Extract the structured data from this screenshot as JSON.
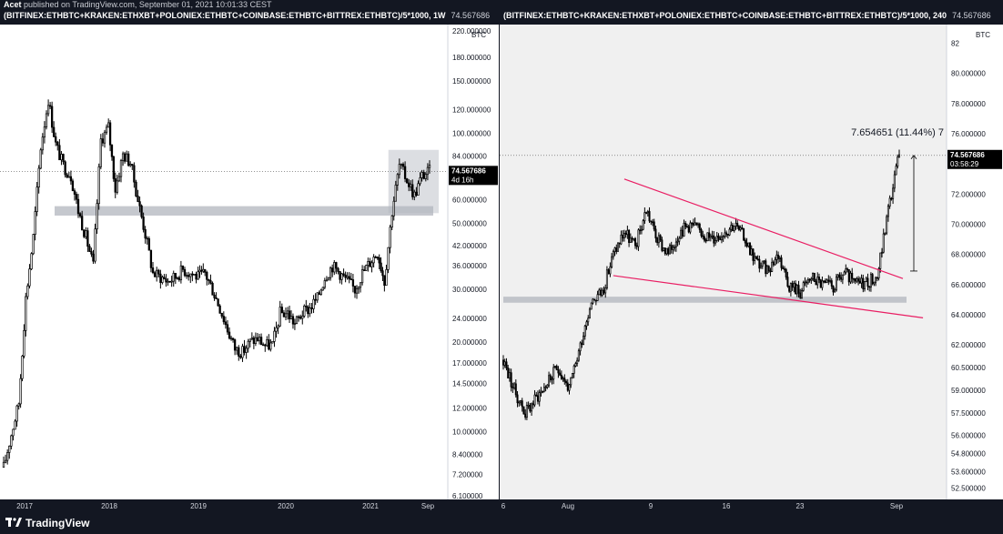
{
  "header": {
    "author": "Acet",
    "publish_text": " published on TradingView.com, September 01, 2021 10:01:33 CEST"
  },
  "footer": {
    "brand": "TradingView"
  },
  "colors": {
    "candle": "#000000",
    "wedge_line": "#e91e63",
    "zone_gray": "#b2b5be",
    "price_label_bg": "#000000",
    "header_bg": "#131722"
  },
  "chart_data": [
    {
      "type": "candlestick",
      "title": "(BITFINEX:ETHBTC+KRAKEN:ETHXBT+POLONIEX:ETHBTC+COINBASE:ETHBTC+BITTREX:ETHBTC)/5*1000, 1W",
      "last_value_header": "74.567686",
      "log_scale": true,
      "y_unit": "BTC",
      "y_ticks": [
        "220.000000",
        "180.000000",
        "150.000000",
        "120.000000",
        "100.000000",
        "84.000000",
        "60.000000",
        "50.000000",
        "42.000000",
        "36.000000",
        "30.000000",
        "24.000000",
        "20.000000",
        "17.000000",
        "14.500000",
        "12.000000",
        "10.000000",
        "8.400000",
        "7.200000",
        "6.100000"
      ],
      "x_ticks": [
        "2017",
        "2018",
        "2019",
        "2020",
        "2021",
        "Sep"
      ],
      "ylim": [
        6.1,
        225
      ],
      "last_price_label": "74.567686",
      "countdown_label": "4d 16h",
      "support_zone": [
        53,
        57
      ],
      "highlight_box": [
        54,
        88
      ],
      "series_points": [
        [
          "2016-12",
          7.6
        ],
        [
          "2017-01",
          9.8
        ],
        [
          "2017-02",
          12.5
        ],
        [
          "2017-03",
          28
        ],
        [
          "2017-04",
          45
        ],
        [
          "2017-05",
          90
        ],
        [
          "2017-06",
          130
        ],
        [
          "2017-07",
          92
        ],
        [
          "2017-08",
          78
        ],
        [
          "2017-09",
          72
        ],
        [
          "2017-10",
          55
        ],
        [
          "2017-11",
          45
        ],
        [
          "2017-12",
          36
        ],
        [
          "2018-01",
          95
        ],
        [
          "2018-02",
          105
        ],
        [
          "2018-03",
          65
        ],
        [
          "2018-04",
          85
        ],
        [
          "2018-05",
          80
        ],
        [
          "2018-06",
          60
        ],
        [
          "2018-07",
          46
        ],
        [
          "2018-08",
          34
        ],
        [
          "2018-09",
          33
        ],
        [
          "2018-10",
          32
        ],
        [
          "2018-11",
          33
        ],
        [
          "2018-12",
          35
        ],
        [
          "2019-01",
          34
        ],
        [
          "2019-02",
          33
        ],
        [
          "2019-03",
          34
        ],
        [
          "2019-04",
          30
        ],
        [
          "2019-05",
          26
        ],
        [
          "2019-06",
          22
        ],
        [
          "2019-07",
          19
        ],
        [
          "2019-08",
          18.5
        ],
        [
          "2019-09",
          20
        ],
        [
          "2019-10",
          20.5
        ],
        [
          "2019-11",
          19.5
        ],
        [
          "2019-12",
          19.5
        ],
        [
          "2020-01",
          25
        ],
        [
          "2020-02",
          25
        ],
        [
          "2020-03",
          23
        ],
        [
          "2020-04",
          25
        ],
        [
          "2020-05",
          26
        ],
        [
          "2020-06",
          28
        ],
        [
          "2020-07",
          33
        ],
        [
          "2020-08",
          36
        ],
        [
          "2020-09",
          34
        ],
        [
          "2020-10",
          32
        ],
        [
          "2020-11",
          30
        ],
        [
          "2020-12",
          34
        ],
        [
          "2021-01",
          37
        ],
        [
          "2021-02",
          40
        ],
        [
          "2021-03",
          32
        ],
        [
          "2021-04",
          55
        ],
        [
          "2021-05",
          78
        ],
        [
          "2021-06",
          70
        ],
        [
          "2021-07",
          62
        ],
        [
          "2021-08",
          72
        ],
        [
          "2021-09",
          74.57
        ]
      ]
    },
    {
      "type": "candlestick",
      "title": "(BITFINEX:ETHBTC+KRAKEN:ETHXBT+POLONIEX:ETHBTC+COINBASE:ETHBTC+BITTREX:ETHBTC)/5*1000, 240",
      "last_value_header": "74.567686",
      "y_unit": "BTC",
      "y_ticks": [
        "82",
        "80.000000",
        "78.000000",
        "76.000000",
        "74.000000",
        "72.000000",
        "70.000000",
        "68.000000",
        "66.000000",
        "64.000000",
        "62.000000",
        "60.500000",
        "59.000000",
        "57.500000",
        "56.000000",
        "54.800000",
        "53.600000",
        "52.500000"
      ],
      "x_ticks": [
        "6",
        "Aug",
        "9",
        "16",
        "23",
        "Sep"
      ],
      "ylim": [
        52.0,
        83.0
      ],
      "last_price_label": "74.567686",
      "countdown_label": "03:58:29",
      "measure_label": "7.654651 (11.44%) 7",
      "support_zone": [
        64.8,
        65.2
      ],
      "wedge_upper": [
        [
          "2021-08-06",
          73.0
        ],
        [
          "2021-08-31",
          66.4
        ]
      ],
      "wedge_lower": [
        [
          "2021-08-05",
          66.6
        ],
        [
          "2021-09-01",
          63.8
        ]
      ],
      "series_points": [
        [
          "2021-07-26",
          61.0
        ],
        [
          "2021-07-27",
          59.0
        ],
        [
          "2021-07-28",
          57.5
        ],
        [
          "2021-07-29",
          58.5
        ],
        [
          "2021-07-30",
          59.5
        ],
        [
          "2021-07-31",
          60.5
        ],
        [
          "2021-08-01",
          59.0
        ],
        [
          "2021-08-02",
          62.0
        ],
        [
          "2021-08-03",
          65.0
        ],
        [
          "2021-08-04",
          65.5
        ],
        [
          "2021-08-05",
          68.0
        ],
        [
          "2021-08-06",
          69.5
        ],
        [
          "2021-08-07",
          68.5
        ],
        [
          "2021-08-08",
          71.0
        ],
        [
          "2021-08-09",
          69.0
        ],
        [
          "2021-08-10",
          68.0
        ],
        [
          "2021-08-11",
          69.5
        ],
        [
          "2021-08-12",
          70.0
        ],
        [
          "2021-08-13",
          69.5
        ],
        [
          "2021-08-14",
          69.0
        ],
        [
          "2021-08-15",
          69.5
        ],
        [
          "2021-08-16",
          70.0
        ],
        [
          "2021-08-17",
          69.0
        ],
        [
          "2021-08-18",
          67.5
        ],
        [
          "2021-08-19",
          67.0
        ],
        [
          "2021-08-20",
          68.0
        ],
        [
          "2021-08-21",
          66.0
        ],
        [
          "2021-08-22",
          65.5
        ],
        [
          "2021-08-23",
          66.5
        ],
        [
          "2021-08-24",
          66.0
        ],
        [
          "2021-08-25",
          65.8
        ],
        [
          "2021-08-26",
          66.8
        ],
        [
          "2021-08-27",
          66.0
        ],
        [
          "2021-08-28",
          66.2
        ],
        [
          "2021-08-29",
          66.5
        ],
        [
          "2021-08-30",
          71.0
        ],
        [
          "2021-08-31",
          74.57
        ]
      ]
    }
  ]
}
